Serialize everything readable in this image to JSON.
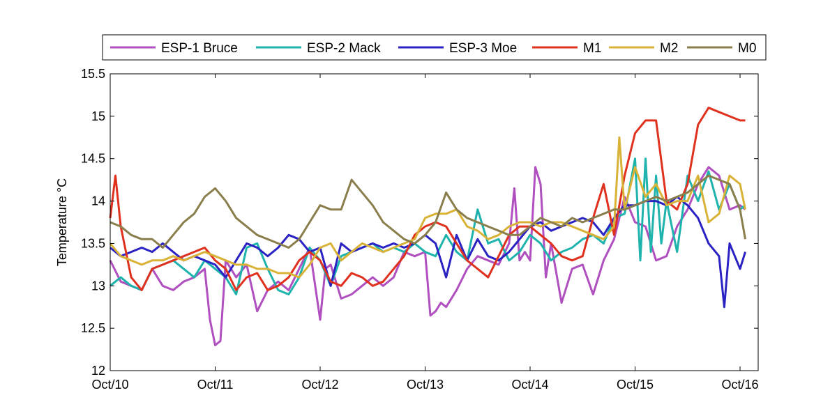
{
  "chart_data": {
    "type": "line",
    "title": "",
    "xlabel": "",
    "ylabel": "Temperature °C",
    "xlim": [
      "Oct/10",
      "Oct/16 +0.05"
    ],
    "x_tick_labels": [
      "Oct/10",
      "Oct/11",
      "Oct/12",
      "Oct/13",
      "Oct/14",
      "Oct/15",
      "Oct/16"
    ],
    "ylim": [
      12,
      15.5
    ],
    "y_ticks": [
      12,
      12.5,
      13,
      13.5,
      14,
      14.5,
      15,
      15.5
    ],
    "y_tick_labels": [
      "12",
      "12.5",
      "13",
      "13.5",
      "14",
      "14.5",
      "15",
      "15.5"
    ],
    "grid": false,
    "legend_position": "top, horizontal",
    "series": [
      {
        "name": "ESP-1 Bruce",
        "color": "#b04fbf",
        "x": [
          "Oct/10 00:00",
          "Oct/10 02:24",
          "Oct/10 04:48",
          "Oct/10 07:12",
          "Oct/10 09:36",
          "Oct/10 12:00",
          "Oct/10 14:24",
          "Oct/10 16:48",
          "Oct/10 19:12",
          "Oct/10 21:36",
          "Oct/10 22:48",
          "Oct/11 00:00",
          "Oct/11 01:12",
          "Oct/11 02:24",
          "Oct/11 04:48",
          "Oct/11 07:12",
          "Oct/11 09:36",
          "Oct/11 12:00",
          "Oct/11 14:24",
          "Oct/11 16:48",
          "Oct/11 19:12",
          "Oct/11 21:36",
          "Oct/12 00:00",
          "Oct/12 01:12",
          "Oct/12 02:24",
          "Oct/12 04:48",
          "Oct/12 07:12",
          "Oct/12 09:36",
          "Oct/12 12:00",
          "Oct/12 14:24",
          "Oct/12 16:48",
          "Oct/12 19:12",
          "Oct/12 21:36",
          "Oct/13 00:00",
          "Oct/13 01:12",
          "Oct/13 02:24",
          "Oct/13 03:36",
          "Oct/13 04:48",
          "Oct/13 07:12",
          "Oct/13 09:36",
          "Oct/13 12:00",
          "Oct/13 14:24",
          "Oct/13 16:48",
          "Oct/13 19:12",
          "Oct/13 20:24",
          "Oct/13 21:36",
          "Oct/13 22:48",
          "Oct/14 00:00",
          "Oct/14 01:12",
          "Oct/14 02:24",
          "Oct/14 03:36",
          "Oct/14 04:48",
          "Oct/14 07:12",
          "Oct/14 09:36",
          "Oct/14 12:00",
          "Oct/14 14:24",
          "Oct/14 16:48",
          "Oct/14 19:12",
          "Oct/14 21:36",
          "Oct/15 00:00",
          "Oct/15 02:24",
          "Oct/15 04:48",
          "Oct/15 07:12",
          "Oct/15 09:36",
          "Oct/15 12:00",
          "Oct/15 14:24",
          "Oct/15 16:48",
          "Oct/15 19:12",
          "Oct/15 21:36",
          "Oct/16 00:00",
          "Oct/16 01:12"
        ],
        "values": [
          13.3,
          13.05,
          13.0,
          12.95,
          13.2,
          13.0,
          12.95,
          13.05,
          13.1,
          13.2,
          12.6,
          12.3,
          12.35,
          13.3,
          13.1,
          13.25,
          12.7,
          12.95,
          13.05,
          12.95,
          13.2,
          13.45,
          12.6,
          13.2,
          13.25,
          12.85,
          12.9,
          13.0,
          13.1,
          13.0,
          13.1,
          13.4,
          13.35,
          13.4,
          12.65,
          12.7,
          12.8,
          12.75,
          12.95,
          13.2,
          13.35,
          13.3,
          13.25,
          13.5,
          14.15,
          13.3,
          13.4,
          13.3,
          14.4,
          14.2,
          13.1,
          13.5,
          12.8,
          13.2,
          13.25,
          12.9,
          13.3,
          13.55,
          14.05,
          13.75,
          13.7,
          13.3,
          13.35,
          13.7,
          13.9,
          14.2,
          14.4,
          14.3,
          13.9,
          13.95,
          13.9
        ]
      },
      {
        "name": "ESP-2 Mack",
        "color": "#1fb3ad",
        "x": [
          "Oct/10 00:00",
          "Oct/10 02:24",
          "Oct/10 04:48",
          "Oct/10 07:12",
          "Oct/10 09:36",
          "Oct/10 12:00",
          "Oct/10 14:24",
          "Oct/10 16:48",
          "Oct/10 19:12",
          "Oct/10 21:36",
          "Oct/11 00:00",
          "Oct/11 02:24",
          "Oct/11 04:48",
          "Oct/11 07:12",
          "Oct/11 09:36",
          "Oct/11 12:00",
          "Oct/11 14:24",
          "Oct/11 16:48",
          "Oct/11 19:12",
          "Oct/11 21:36",
          "Oct/12 00:00",
          "Oct/12 02:24",
          "Oct/12 04:48",
          "Oct/12 07:12",
          "Oct/12 09:36",
          "Oct/12 12:00",
          "Oct/12 14:24",
          "Oct/12 16:48",
          "Oct/12 19:12",
          "Oct/12 21:36",
          "Oct/13 00:00",
          "Oct/13 02:24",
          "Oct/13 04:48",
          "Oct/13 07:12",
          "Oct/13 09:36",
          "Oct/13 12:00",
          "Oct/13 14:24",
          "Oct/13 16:48",
          "Oct/13 19:12",
          "Oct/13 21:36",
          "Oct/14 00:00",
          "Oct/14 02:24",
          "Oct/14 04:48",
          "Oct/14 07:12",
          "Oct/14 09:36",
          "Oct/14 12:00",
          "Oct/14 14:24",
          "Oct/14 16:48",
          "Oct/14 19:12",
          "Oct/14 21:36",
          "Oct/15 00:00",
          "Oct/15 01:12",
          "Oct/15 02:24",
          "Oct/15 03:36",
          "Oct/15 04:48",
          "Oct/15 06:00",
          "Oct/15 07:12",
          "Oct/15 09:36",
          "Oct/15 12:00",
          "Oct/15 14:24",
          "Oct/15 16:48",
          "Oct/15 19:12",
          "Oct/15 21:36",
          "Oct/16 00:00",
          "Oct/16 01:12"
        ],
        "values": [
          13.0,
          13.1,
          13.0,
          12.95,
          13.2,
          13.25,
          13.3,
          13.2,
          13.1,
          13.3,
          13.2,
          13.1,
          12.9,
          13.45,
          13.5,
          13.2,
          12.95,
          12.9,
          13.1,
          13.45,
          13.3,
          13.0,
          13.35,
          13.4,
          13.45,
          13.5,
          13.4,
          13.45,
          13.4,
          13.5,
          13.4,
          13.35,
          13.6,
          13.4,
          13.3,
          13.9,
          13.5,
          13.55,
          13.3,
          13.4,
          13.6,
          13.5,
          13.3,
          13.4,
          13.45,
          13.55,
          13.6,
          13.5,
          13.8,
          13.85,
          14.5,
          13.3,
          14.5,
          13.4,
          14.3,
          13.5,
          14.0,
          13.4,
          14.3,
          14.0,
          14.35,
          13.9,
          14.2,
          13.9,
          13.95
        ]
      },
      {
        "name": "ESP-3 Moe",
        "color": "#2b22c4",
        "x": [
          "Oct/10 00:00",
          "Oct/10 02:24",
          "Oct/10 04:48",
          "Oct/10 07:12",
          "Oct/10 09:36",
          "Oct/10 12:00",
          "Oct/10 14:24",
          "Oct/10 16:48",
          "Oct/10 19:12",
          "Oct/10 21:36",
          "Oct/11 00:00",
          "Oct/11 02:24",
          "Oct/11 04:48",
          "Oct/11 07:12",
          "Oct/11 09:36",
          "Oct/11 12:00",
          "Oct/11 14:24",
          "Oct/11 16:48",
          "Oct/11 19:12",
          "Oct/11 21:36",
          "Oct/12 00:00",
          "Oct/12 02:24",
          "Oct/12 04:48",
          "Oct/12 07:12",
          "Oct/12 09:36",
          "Oct/12 12:00",
          "Oct/12 14:24",
          "Oct/12 16:48",
          "Oct/12 19:12",
          "Oct/12 21:36",
          "Oct/13 00:00",
          "Oct/13 02:24",
          "Oct/13 04:48",
          "Oct/13 07:12",
          "Oct/13 09:36",
          "Oct/13 12:00",
          "Oct/13 14:24",
          "Oct/13 16:48",
          "Oct/13 19:12",
          "Oct/13 21:36",
          "Oct/14 00:00",
          "Oct/14 02:24",
          "Oct/14 04:48",
          "Oct/14 07:12",
          "Oct/14 09:36",
          "Oct/14 12:00",
          "Oct/14 14:24",
          "Oct/14 16:48",
          "Oct/14 19:12",
          "Oct/14 21:36",
          "Oct/15 00:00",
          "Oct/15 02:24",
          "Oct/15 04:48",
          "Oct/15 07:12",
          "Oct/15 09:36",
          "Oct/15 12:00",
          "Oct/15 14:24",
          "Oct/15 16:48",
          "Oct/15 19:12",
          "Oct/15 20:24",
          "Oct/15 21:36",
          "Oct/16 00:00",
          "Oct/16 01:12"
        ],
        "values": [
          13.45,
          13.35,
          13.4,
          13.45,
          13.4,
          13.5,
          13.4,
          13.3,
          13.35,
          13.3,
          13.25,
          13.1,
          13.3,
          13.5,
          13.45,
          13.35,
          13.45,
          13.6,
          13.55,
          13.4,
          13.45,
          13.0,
          13.5,
          13.4,
          13.45,
          13.5,
          13.45,
          13.5,
          13.45,
          13.5,
          13.6,
          13.5,
          13.1,
          13.6,
          13.3,
          13.55,
          13.35,
          13.3,
          13.4,
          13.55,
          13.7,
          13.75,
          13.65,
          13.7,
          13.75,
          13.8,
          13.75,
          13.6,
          13.8,
          13.95,
          13.95,
          14.0,
          14.0,
          13.95,
          14.05,
          13.95,
          13.8,
          13.5,
          13.35,
          12.75,
          13.5,
          13.2,
          13.4
        ]
      },
      {
        "name": "M1",
        "color": "#e0311f",
        "x": [
          "Oct/10 00:00",
          "Oct/10 01:12",
          "Oct/10 02:24",
          "Oct/10 04:48",
          "Oct/10 07:12",
          "Oct/10 09:36",
          "Oct/10 12:00",
          "Oct/10 14:24",
          "Oct/10 16:48",
          "Oct/10 19:12",
          "Oct/10 21:36",
          "Oct/11 00:00",
          "Oct/11 02:24",
          "Oct/11 04:48",
          "Oct/11 07:12",
          "Oct/11 09:36",
          "Oct/11 12:00",
          "Oct/11 14:24",
          "Oct/11 16:48",
          "Oct/11 19:12",
          "Oct/11 21:36",
          "Oct/12 00:00",
          "Oct/12 02:24",
          "Oct/12 04:48",
          "Oct/12 07:12",
          "Oct/12 09:36",
          "Oct/12 12:00",
          "Oct/12 14:24",
          "Oct/12 16:48",
          "Oct/12 19:12",
          "Oct/12 21:36",
          "Oct/13 00:00",
          "Oct/13 02:24",
          "Oct/13 04:48",
          "Oct/13 07:12",
          "Oct/13 09:36",
          "Oct/13 12:00",
          "Oct/13 14:24",
          "Oct/13 16:48",
          "Oct/13 19:12",
          "Oct/13 21:36",
          "Oct/14 00:00",
          "Oct/14 02:24",
          "Oct/14 04:48",
          "Oct/14 07:12",
          "Oct/14 09:36",
          "Oct/14 12:00",
          "Oct/14 14:24",
          "Oct/14 16:48",
          "Oct/14 19:12",
          "Oct/14 21:36",
          "Oct/15 00:00",
          "Oct/15 02:24",
          "Oct/15 04:48",
          "Oct/15 07:12",
          "Oct/15 09:36",
          "Oct/15 12:00",
          "Oct/15 14:24",
          "Oct/15 16:48",
          "Oct/15 19:12",
          "Oct/15 21:36",
          "Oct/16 00:00",
          "Oct/16 01:12"
        ],
        "values": [
          13.8,
          14.3,
          13.7,
          13.1,
          12.95,
          13.2,
          13.25,
          13.3,
          13.35,
          13.4,
          13.45,
          13.3,
          13.2,
          12.95,
          13.1,
          13.15,
          12.95,
          13.0,
          13.1,
          13.3,
          13.4,
          13.3,
          13.05,
          13.0,
          13.15,
          13.1,
          13.0,
          13.05,
          13.2,
          13.35,
          13.6,
          13.7,
          13.75,
          13.7,
          13.5,
          13.3,
          13.2,
          13.1,
          13.35,
          13.6,
          13.7,
          13.7,
          13.6,
          13.5,
          13.35,
          13.3,
          13.35,
          13.8,
          14.2,
          13.6,
          14.3,
          14.8,
          14.95,
          14.95,
          14.0,
          13.9,
          14.2,
          14.9,
          15.1,
          15.05,
          15.0,
          14.95,
          14.95
        ]
      },
      {
        "name": "M2",
        "color": "#d9b337",
        "x": [
          "Oct/10 00:00",
          "Oct/10 02:24",
          "Oct/10 04:48",
          "Oct/10 07:12",
          "Oct/10 09:36",
          "Oct/10 12:00",
          "Oct/10 14:24",
          "Oct/10 16:48",
          "Oct/10 19:12",
          "Oct/10 21:36",
          "Oct/11 00:00",
          "Oct/11 02:24",
          "Oct/11 04:48",
          "Oct/11 07:12",
          "Oct/11 09:36",
          "Oct/11 12:00",
          "Oct/11 14:24",
          "Oct/11 16:48",
          "Oct/11 19:12",
          "Oct/11 21:36",
          "Oct/12 00:00",
          "Oct/12 02:24",
          "Oct/12 04:48",
          "Oct/12 07:12",
          "Oct/12 09:36",
          "Oct/12 12:00",
          "Oct/12 14:24",
          "Oct/12 16:48",
          "Oct/12 19:12",
          "Oct/12 21:36",
          "Oct/13 00:00",
          "Oct/13 02:24",
          "Oct/13 04:48",
          "Oct/13 07:12",
          "Oct/13 09:36",
          "Oct/13 12:00",
          "Oct/13 14:24",
          "Oct/13 16:48",
          "Oct/13 19:12",
          "Oct/13 21:36",
          "Oct/14 00:00",
          "Oct/14 02:24",
          "Oct/14 04:48",
          "Oct/14 07:12",
          "Oct/14 09:36",
          "Oct/14 12:00",
          "Oct/14 14:24",
          "Oct/14 16:48",
          "Oct/14 19:12",
          "Oct/14 20:24",
          "Oct/14 21:36",
          "Oct/15 00:00",
          "Oct/15 02:24",
          "Oct/15 04:48",
          "Oct/15 07:12",
          "Oct/15 09:36",
          "Oct/15 12:00",
          "Oct/15 14:24",
          "Oct/15 16:48",
          "Oct/15 19:12",
          "Oct/15 21:36",
          "Oct/16 00:00",
          "Oct/16 01:12"
        ],
        "values": [
          13.5,
          13.35,
          13.3,
          13.25,
          13.3,
          13.3,
          13.35,
          13.3,
          13.35,
          13.4,
          13.35,
          13.3,
          13.25,
          13.25,
          13.2,
          13.2,
          13.15,
          13.15,
          13.1,
          13.25,
          13.45,
          13.5,
          13.3,
          13.4,
          13.5,
          13.45,
          13.4,
          13.45,
          13.5,
          13.55,
          13.8,
          13.85,
          13.85,
          13.9,
          13.7,
          13.65,
          13.55,
          13.6,
          13.7,
          13.75,
          13.75,
          13.7,
          13.75,
          13.75,
          13.7,
          13.65,
          13.6,
          13.55,
          13.7,
          14.75,
          13.9,
          14.4,
          14.05,
          14.2,
          13.95,
          14.0,
          14.0,
          14.3,
          13.75,
          13.85,
          14.3,
          14.2,
          13.9
        ]
      },
      {
        "name": "M0",
        "color": "#8a7f4c",
        "x": [
          "Oct/10 00:00",
          "Oct/10 02:24",
          "Oct/10 04:48",
          "Oct/10 07:12",
          "Oct/10 09:36",
          "Oct/10 12:00",
          "Oct/10 14:24",
          "Oct/10 16:48",
          "Oct/10 19:12",
          "Oct/10 21:36",
          "Oct/11 00:00",
          "Oct/11 02:24",
          "Oct/11 04:48",
          "Oct/11 07:12",
          "Oct/11 09:36",
          "Oct/11 12:00",
          "Oct/11 14:24",
          "Oct/11 16:48",
          "Oct/11 19:12",
          "Oct/11 21:36",
          "Oct/12 00:00",
          "Oct/12 02:24",
          "Oct/12 04:48",
          "Oct/12 07:12",
          "Oct/12 09:36",
          "Oct/12 12:00",
          "Oct/12 14:24",
          "Oct/12 16:48",
          "Oct/12 19:12",
          "Oct/12 21:36",
          "Oct/13 00:00",
          "Oct/13 02:24",
          "Oct/13 04:48",
          "Oct/13 07:12",
          "Oct/13 09:36",
          "Oct/13 12:00",
          "Oct/13 14:24",
          "Oct/13 16:48",
          "Oct/13 19:12",
          "Oct/13 21:36",
          "Oct/14 00:00",
          "Oct/14 02:24",
          "Oct/14 04:48",
          "Oct/14 07:12",
          "Oct/14 09:36",
          "Oct/14 12:00",
          "Oct/14 14:24",
          "Oct/14 16:48",
          "Oct/14 19:12",
          "Oct/14 21:36",
          "Oct/15 00:00",
          "Oct/15 02:24",
          "Oct/15 04:48",
          "Oct/15 07:12",
          "Oct/15 09:36",
          "Oct/15 12:00",
          "Oct/15 14:24",
          "Oct/15 16:48",
          "Oct/15 19:12",
          "Oct/15 21:36",
          "Oct/16 00:00",
          "Oct/16 01:12"
        ],
        "values": [
          13.75,
          13.7,
          13.6,
          13.55,
          13.55,
          13.45,
          13.6,
          13.75,
          13.85,
          14.05,
          14.15,
          14.0,
          13.8,
          13.7,
          13.6,
          13.55,
          13.5,
          13.45,
          13.55,
          13.75,
          13.95,
          13.9,
          13.9,
          14.25,
          14.1,
          13.95,
          13.75,
          13.65,
          13.55,
          13.5,
          13.6,
          13.75,
          14.1,
          13.9,
          13.8,
          13.75,
          13.7,
          13.65,
          13.6,
          13.6,
          13.7,
          13.8,
          13.75,
          13.7,
          13.8,
          13.75,
          13.8,
          13.85,
          13.9,
          13.9,
          13.95,
          14.0,
          14.05,
          14.0,
          14.05,
          14.1,
          14.2,
          14.3,
          14.25,
          14.2,
          13.9,
          13.55
        ]
      }
    ]
  }
}
